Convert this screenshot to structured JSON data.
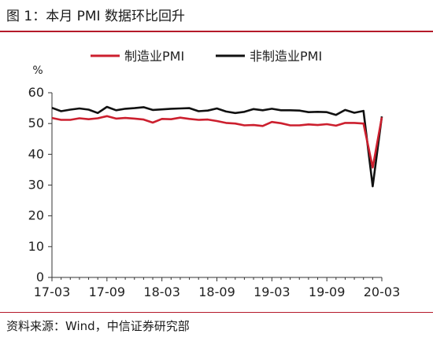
{
  "figure_title": "图 1：本月 PMI 数据环比回升",
  "source_note": "资料来源：Wind，中信证券研究部",
  "colors": {
    "brand_rule": "#b51a2a",
    "manufacturing": "#cc1f2e",
    "non_manufacturing": "#111111"
  },
  "chart_data": {
    "type": "line",
    "y_unit": "%",
    "ylim": [
      0,
      60
    ],
    "yticks": [
      0,
      10,
      20,
      30,
      40,
      50,
      60
    ],
    "x_tick_labels": [
      "17-03",
      "17-09",
      "18-03",
      "18-09",
      "19-03",
      "19-09",
      "20-03"
    ],
    "x": [
      "17-03",
      "17-04",
      "17-05",
      "17-06",
      "17-07",
      "17-08",
      "17-09",
      "17-10",
      "17-11",
      "17-12",
      "18-01",
      "18-02",
      "18-03",
      "18-04",
      "18-05",
      "18-06",
      "18-07",
      "18-08",
      "18-09",
      "18-10",
      "18-11",
      "18-12",
      "19-01",
      "19-02",
      "19-03",
      "19-04",
      "19-05",
      "19-06",
      "19-07",
      "19-08",
      "19-09",
      "19-10",
      "19-11",
      "19-12",
      "20-01",
      "20-02",
      "20-03"
    ],
    "legend_position": "top",
    "grid": false,
    "series": [
      {
        "name": "制造业PMI",
        "color": "#cc1f2e",
        "values": [
          51.8,
          51.2,
          51.2,
          51.7,
          51.4,
          51.7,
          52.4,
          51.6,
          51.8,
          51.6,
          51.3,
          50.3,
          51.5,
          51.4,
          51.9,
          51.5,
          51.2,
          51.3,
          50.8,
          50.2,
          50.0,
          49.4,
          49.5,
          49.2,
          50.5,
          50.1,
          49.4,
          49.4,
          49.7,
          49.5,
          49.8,
          49.3,
          50.2,
          50.2,
          50.0,
          35.7,
          52.0
        ]
      },
      {
        "name": "非制造业PMI",
        "color": "#111111",
        "values": [
          55.1,
          54.0,
          54.5,
          54.9,
          54.5,
          53.4,
          55.4,
          54.3,
          54.8,
          55.0,
          55.3,
          54.4,
          54.6,
          54.8,
          54.9,
          55.0,
          54.0,
          54.2,
          54.9,
          53.9,
          53.4,
          53.8,
          54.7,
          54.3,
          54.8,
          54.3,
          54.3,
          54.2,
          53.7,
          53.8,
          53.7,
          52.8,
          54.4,
          53.5,
          54.1,
          29.6,
          52.3
        ]
      }
    ]
  }
}
